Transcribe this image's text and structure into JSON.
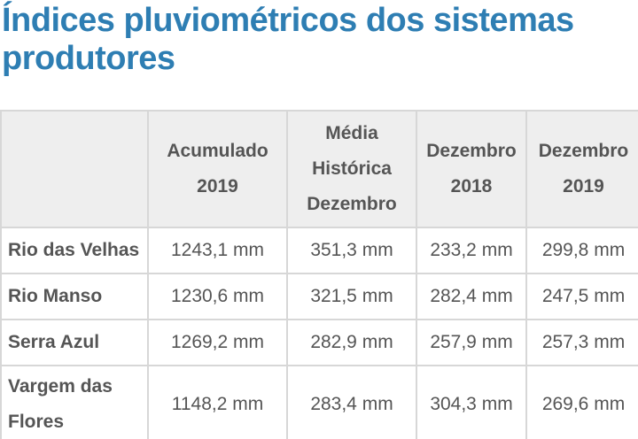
{
  "title": "Índices pluviométricos dos sistemas produtores",
  "table": {
    "headers": [
      "",
      "Acumulado 2019",
      "Média Histórica Dezembro",
      "Dezembro 2018",
      "Dezembro 2019"
    ],
    "rows": [
      [
        "Rio das Velhas",
        "1243,1 mm",
        "351,3 mm",
        "233,2 mm",
        "299,8 mm"
      ],
      [
        "Rio Manso",
        "1230,6 mm",
        "321,5 mm",
        "282,4 mm",
        "247,5 mm"
      ],
      [
        "Serra Azul",
        "1269,2 mm",
        "282,9 mm",
        "257,9 mm",
        "257,3 mm"
      ],
      [
        "Vargem das Flores",
        "1148,2 mm",
        "283,4 mm",
        "304,3 mm",
        "269,6 mm"
      ]
    ]
  },
  "colors": {
    "title": "#2e7eb3",
    "text": "#555555",
    "header_bg": "#eeeeee",
    "border": "#d7d7d7"
  }
}
